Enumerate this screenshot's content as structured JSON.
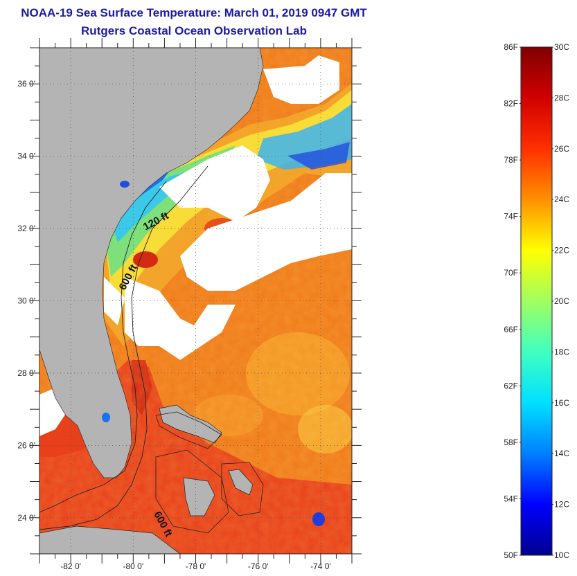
{
  "title": {
    "line1": "NOAA-19 Sea Surface Temperature:  March 01, 2019 0947 GMT",
    "line2": "Rutgers Coastal Ocean Observation Lab"
  },
  "map": {
    "lat_range": [
      23,
      37
    ],
    "lon_range": [
      -83,
      -73
    ],
    "lat_ticks": [
      {
        "value": 24,
        "label": "24 0'"
      },
      {
        "value": 26,
        "label": "26 0'"
      },
      {
        "value": 28,
        "label": "28 0'"
      },
      {
        "value": 30,
        "label": "30 0'"
      },
      {
        "value": 32,
        "label": "32 0'"
      },
      {
        "value": 34,
        "label": "34 0'"
      },
      {
        "value": 36,
        "label": "36 0'"
      }
    ],
    "lon_ticks": [
      {
        "value": -82,
        "label": "-82 0'"
      },
      {
        "value": -80,
        "label": "-80 0'"
      },
      {
        "value": -78,
        "label": "-78 0'"
      },
      {
        "value": -76,
        "label": "-76 0'"
      },
      {
        "value": -74,
        "label": "-74 0'"
      }
    ],
    "isobath_labels": [
      {
        "text": "120 ft",
        "name": "isobath-120ft-label"
      },
      {
        "text": "600 ft",
        "name": "isobath-600ft-north-label"
      },
      {
        "text": "600 ft",
        "name": "isobath-600ft-south-label"
      }
    ],
    "colors": {
      "land": "#b4b4b4",
      "cloud": "#ffffff",
      "warm_water": "#f07a1a",
      "gulf_stream": "#e83a12"
    }
  },
  "colorbar": {
    "fahrenheit_labels": [
      "86F",
      "82F",
      "78F",
      "74F",
      "70F",
      "66F",
      "62F",
      "58F",
      "54F",
      "50F"
    ],
    "celsius_labels": [
      "30C",
      "28C",
      "26C",
      "24C",
      "22C",
      "20C",
      "18C",
      "16C",
      "14C",
      "12C",
      "10C"
    ],
    "range_celsius": [
      10,
      30
    ],
    "colors": [
      "#00008f",
      "#0000ff",
      "#0080ff",
      "#00e0ff",
      "#40ffc0",
      "#a0ff60",
      "#ffff00",
      "#ff9000",
      "#ff3000",
      "#d00000",
      "#800000"
    ]
  }
}
